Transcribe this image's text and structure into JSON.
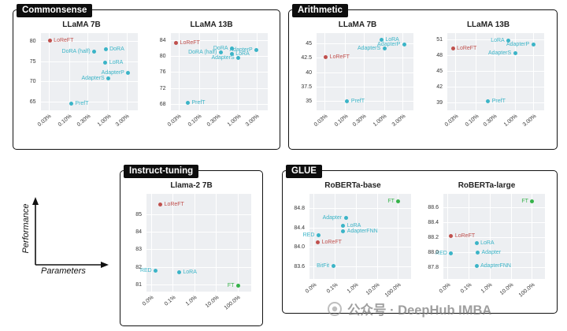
{
  "legend": {
    "y_axis": "Performance",
    "x_axis": "Parameters"
  },
  "watermark": {
    "text": "公众号 · DeepHub IMBA"
  },
  "colors": {
    "reft": "#c0504d",
    "peft": "#3bb4c7",
    "ft": "#36b24a"
  },
  "chart_data": {
    "type": "scatter",
    "x_axis_meaning": "Parameters (% of model params, log scale)",
    "y_axis_meaning": "Performance",
    "panels": [
      {
        "id": "commonsense",
        "title": "Commonsense",
        "charts": [
          {
            "title": "LLaMA 7B",
            "x_domain": [
              0.018,
              5.5
            ],
            "x_ticks": [
              {
                "v": 0.03,
                "label": "0.03%"
              },
              {
                "v": 0.1,
                "label": "0.10%"
              },
              {
                "v": 0.3,
                "label": "0.30%"
              },
              {
                "v": 1.0,
                "label": "1.00%"
              },
              {
                "v": 3.0,
                "label": "3.00%"
              }
            ],
            "y_domain": [
              63.0,
              82.0
            ],
            "y_ticks": [
              {
                "v": 65,
                "label": "65"
              },
              {
                "v": 70,
                "label": "70"
              },
              {
                "v": 75,
                "label": "75"
              },
              {
                "v": 80,
                "label": "80"
              }
            ],
            "points": [
              {
                "label": "LoReFT",
                "x": 0.031,
                "y": 80.2,
                "c": "reft",
                "side": "right"
              },
              {
                "label": "DoRA",
                "x": 0.84,
                "y": 78.1,
                "c": "peft",
                "side": "right"
              },
              {
                "label": "DoRA (half)",
                "x": 0.43,
                "y": 77.4,
                "c": "peft",
                "side": "left"
              },
              {
                "label": "LoRA",
                "x": 0.83,
                "y": 74.7,
                "c": "peft",
                "side": "right"
              },
              {
                "label": "AdapterP",
                "x": 3.2,
                "y": 72.3,
                "c": "peft",
                "side": "left"
              },
              {
                "label": "AdapterS",
                "x": 0.99,
                "y": 70.8,
                "c": "peft",
                "side": "left"
              },
              {
                "label": "PrefT",
                "x": 0.11,
                "y": 64.6,
                "c": "peft",
                "side": "right"
              }
            ]
          },
          {
            "title": "LLaMA 13B",
            "x_domain": [
              0.018,
              5.5
            ],
            "x_ticks": [
              {
                "v": 0.03,
                "label": "0.03%"
              },
              {
                "v": 0.1,
                "label": "0.10%"
              },
              {
                "v": 0.3,
                "label": "0.30%"
              },
              {
                "v": 1.0,
                "label": "1.00%"
              },
              {
                "v": 3.0,
                "label": "3.00%"
              }
            ],
            "y_domain": [
              66.5,
              85.8
            ],
            "y_ticks": [
              {
                "v": 68,
                "label": "68"
              },
              {
                "v": 72,
                "label": "72"
              },
              {
                "v": 76,
                "label": "76"
              },
              {
                "v": 80,
                "label": "80"
              },
              {
                "v": 84,
                "label": "84"
              }
            ],
            "points": [
              {
                "label": "LoReFT",
                "x": 0.025,
                "y": 83.3,
                "c": "reft",
                "side": "right"
              },
              {
                "label": "DoRA",
                "x": 0.68,
                "y": 81.9,
                "c": "peft",
                "side": "left"
              },
              {
                "label": "AdapterP",
                "x": 2.89,
                "y": 81.6,
                "c": "peft",
                "side": "left"
              },
              {
                "label": "LoRA",
                "x": 0.67,
                "y": 80.6,
                "c": "peft",
                "side": "right"
              },
              {
                "label": "DoRA (half)",
                "x": 0.35,
                "y": 80.9,
                "c": "peft",
                "side": "left"
              },
              {
                "label": "AdapterS",
                "x": 0.99,
                "y": 79.6,
                "c": "peft",
                "side": "left"
              },
              {
                "label": "PrefT",
                "x": 0.05,
                "y": 68.4,
                "c": "peft",
                "side": "right"
              }
            ]
          }
        ]
      },
      {
        "id": "arithmetic",
        "title": "Arithmetic",
        "charts": [
          {
            "title": "LLaMA 7B",
            "x_domain": [
              0.018,
              5.5
            ],
            "x_ticks": [
              {
                "v": 0.03,
                "label": "0.03%"
              },
              {
                "v": 0.1,
                "label": "0.10%"
              },
              {
                "v": 0.3,
                "label": "0.30%"
              },
              {
                "v": 1.0,
                "label": "1.00%"
              },
              {
                "v": 3.0,
                "label": "3.00%"
              }
            ],
            "y_domain": [
              33.5,
              46.8
            ],
            "y_ticks": [
              {
                "v": 35,
                "label": "35"
              },
              {
                "v": 37.5,
                "label": "37.5"
              },
              {
                "v": 40,
                "label": "40"
              },
              {
                "v": 42.5,
                "label": "42.5"
              },
              {
                "v": 45,
                "label": "45"
              }
            ],
            "points": [
              {
                "label": "LoRA",
                "x": 0.83,
                "y": 45.6,
                "c": "peft",
                "side": "right"
              },
              {
                "label": "AdapterP",
                "x": 3.2,
                "y": 44.9,
                "c": "peft",
                "side": "left"
              },
              {
                "label": "AdapterS",
                "x": 0.99,
                "y": 44.1,
                "c": "peft",
                "side": "left"
              },
              {
                "label": "LoReFT",
                "x": 0.031,
                "y": 42.6,
                "c": "reft",
                "side": "right"
              },
              {
                "label": "PrefT",
                "x": 0.11,
                "y": 35.1,
                "c": "peft",
                "side": "right"
              }
            ]
          },
          {
            "title": "LLaMA 13B",
            "x_domain": [
              0.018,
              5.5
            ],
            "x_ticks": [
              {
                "v": 0.03,
                "label": "0.03%"
              },
              {
                "v": 0.1,
                "label": "0.10%"
              },
              {
                "v": 0.3,
                "label": "0.30%"
              },
              {
                "v": 1.0,
                "label": "1.00%"
              },
              {
                "v": 3.0,
                "label": "3.00%"
              }
            ],
            "y_domain": [
              37.5,
              52.2
            ],
            "y_ticks": [
              {
                "v": 39,
                "label": "39"
              },
              {
                "v": 42,
                "label": "42"
              },
              {
                "v": 45,
                "label": "45"
              },
              {
                "v": 48,
                "label": "48"
              },
              {
                "v": 51,
                "label": "51"
              }
            ],
            "points": [
              {
                "label": "LoRA",
                "x": 0.67,
                "y": 50.8,
                "c": "peft",
                "side": "left"
              },
              {
                "label": "AdapterP",
                "x": 2.89,
                "y": 50.0,
                "c": "peft",
                "side": "left"
              },
              {
                "label": "LoReFT",
                "x": 0.025,
                "y": 49.3,
                "c": "reft",
                "side": "right"
              },
              {
                "label": "AdapterS",
                "x": 0.99,
                "y": 48.4,
                "c": "peft",
                "side": "left"
              },
              {
                "label": "PrefT",
                "x": 0.2,
                "y": 39.2,
                "c": "peft",
                "side": "right"
              }
            ]
          }
        ]
      },
      {
        "id": "instruct-tuning",
        "title": "Instruct-tuning",
        "charts": [
          {
            "title": "Llama-2 7B",
            "x_domain": [
              0.006,
              400
            ],
            "x_ticks": [
              {
                "v": 0.01,
                "label": "0.0%"
              },
              {
                "v": 0.1,
                "label": "0.1%"
              },
              {
                "v": 1,
                "label": "1.0%"
              },
              {
                "v": 10,
                "label": "10.0%"
              },
              {
                "v": 100,
                "label": "100.0%"
              }
            ],
            "y_domain": [
              80.6,
              86.2
            ],
            "y_ticks": [
              {
                "v": 81,
                "label": "81"
              },
              {
                "v": 82,
                "label": "82"
              },
              {
                "v": 83,
                "label": "83"
              },
              {
                "v": 84,
                "label": "84"
              },
              {
                "v": 85,
                "label": "85"
              }
            ],
            "points": [
              {
                "label": "LoReFT",
                "x": 0.026,
                "y": 85.6,
                "c": "reft",
                "side": "right"
              },
              {
                "label": "RED",
                "x": 0.016,
                "y": 81.8,
                "c": "peft",
                "side": "left"
              },
              {
                "label": "LoRA",
                "x": 0.19,
                "y": 81.7,
                "c": "peft",
                "side": "right"
              },
              {
                "label": "FT",
                "x": 100,
                "y": 80.95,
                "c": "ft",
                "side": "left"
              }
            ]
          }
        ]
      },
      {
        "id": "glue",
        "title": "GLUE",
        "charts": [
          {
            "title": "RoBERTa-base",
            "x_domain": [
              0.006,
              400
            ],
            "x_ticks": [
              {
                "v": 0.01,
                "label": "0.0%"
              },
              {
                "v": 0.1,
                "label": "0.1%"
              },
              {
                "v": 1,
                "label": "1.0%"
              },
              {
                "v": 10,
                "label": "10.0%"
              },
              {
                "v": 100,
                "label": "100.0%"
              }
            ],
            "y_domain": [
              83.35,
              85.1
            ],
            "y_ticks": [
              {
                "v": 83.6,
                "label": "83.6"
              },
              {
                "v": 84.0,
                "label": "84.0"
              },
              {
                "v": 84.4,
                "label": "84.4"
              },
              {
                "v": 84.8,
                "label": "84.8"
              }
            ],
            "points": [
              {
                "label": "FT",
                "x": 100,
                "y": 84.95,
                "c": "ft",
                "side": "left"
              },
              {
                "label": "Adapter",
                "x": 0.318,
                "y": 84.6,
                "c": "peft",
                "side": "left"
              },
              {
                "label": "LoRA",
                "x": 0.239,
                "y": 84.45,
                "c": "peft",
                "side": "right"
              },
              {
                "label": "AdapterFNN",
                "x": 0.239,
                "y": 84.33,
                "c": "peft",
                "side": "right"
              },
              {
                "label": "RED",
                "x": 0.016,
                "y": 84.25,
                "c": "peft",
                "side": "left"
              },
              {
                "label": "LoReFT",
                "x": 0.015,
                "y": 84.1,
                "c": "reft",
                "side": "right"
              },
              {
                "label": "BitFit",
                "x": 0.08,
                "y": 83.62,
                "c": "peft",
                "side": "left"
              }
            ]
          },
          {
            "title": "RoBERTa-large",
            "x_domain": [
              0.006,
              400
            ],
            "x_ticks": [
              {
                "v": 0.01,
                "label": "0.0%"
              },
              {
                "v": 0.1,
                "label": "0.1%"
              },
              {
                "v": 1,
                "label": "1.0%"
              },
              {
                "v": 10,
                "label": "10.0%"
              },
              {
                "v": 100,
                "label": "100.0%"
              }
            ],
            "y_domain": [
              87.65,
              88.78
            ],
            "y_ticks": [
              {
                "v": 87.8,
                "label": "87.8"
              },
              {
                "v": 88.0,
                "label": "88.0"
              },
              {
                "v": 88.2,
                "label": "88.2"
              },
              {
                "v": 88.4,
                "label": "88.4"
              },
              {
                "v": 88.6,
                "label": "88.6"
              }
            ],
            "points": [
              {
                "label": "FT",
                "x": 100,
                "y": 88.68,
                "c": "ft",
                "side": "left"
              },
              {
                "label": "LoReFT",
                "x": 0.014,
                "y": 88.22,
                "c": "reft",
                "side": "right"
              },
              {
                "label": "LoRA",
                "x": 0.225,
                "y": 88.13,
                "c": "peft",
                "side": "right"
              },
              {
                "label": "Adapter",
                "x": 0.254,
                "y": 88.0,
                "c": "peft",
                "side": "right"
              },
              {
                "label": "RED",
                "x": 0.014,
                "y": 87.99,
                "c": "peft",
                "side": "left"
              },
              {
                "label": "AdapterFNN",
                "x": 0.225,
                "y": 87.82,
                "c": "peft",
                "side": "right"
              }
            ]
          }
        ]
      }
    ]
  }
}
